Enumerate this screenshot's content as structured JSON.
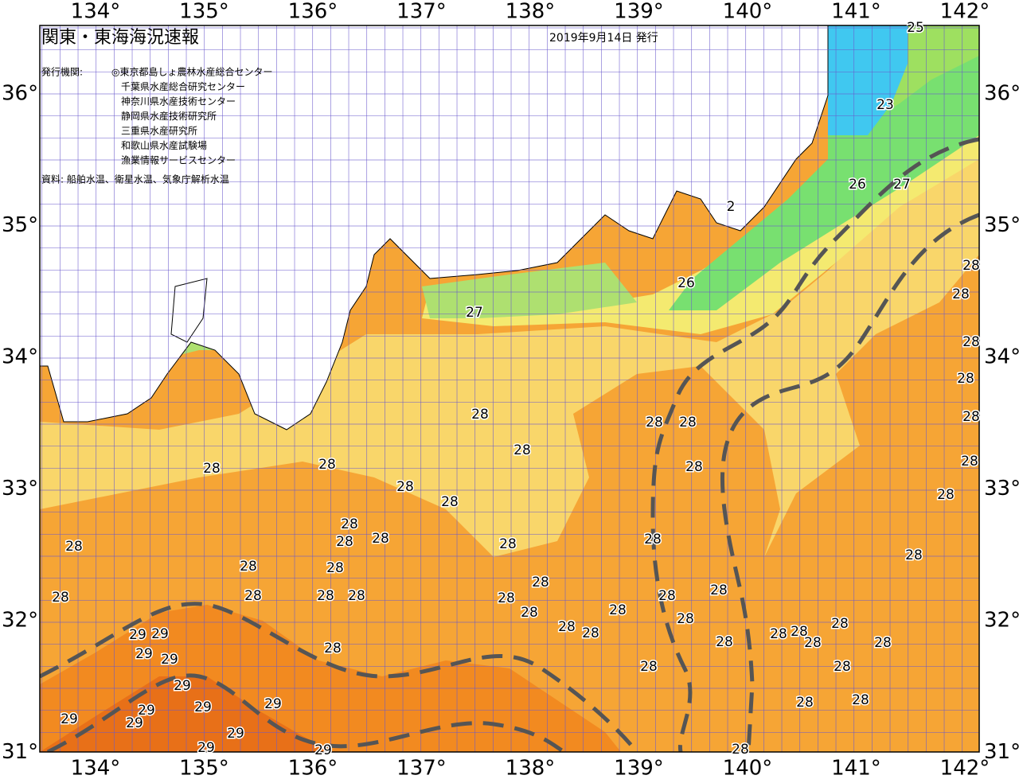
{
  "header": {
    "title": "関東・東海海況速報",
    "date": "2019年9月14日 発行"
  },
  "issuers": {
    "label": "発行機関:",
    "list": [
      "◎東京都島しょ農林水産総合センター",
      "千葉県水産総合研究センター",
      "神奈川県水産技術センター",
      "静岡県水産技術研究所",
      "三重県水産研究所",
      "和歌山県水産試験場",
      "漁業情報サービスセンター"
    ]
  },
  "source": "資料: 船舶水温、衛星水温、気象庁解析水温",
  "axes": {
    "lon": [
      "134°",
      "135°",
      "136°",
      "137°",
      "138°",
      "139°",
      "140°",
      "141°",
      "142°"
    ],
    "lat": [
      "36°",
      "35°",
      "34°",
      "33°",
      "32°",
      "31°"
    ]
  },
  "contour_labels": [
    "25",
    "23",
    "26",
    "27",
    "2",
    "26",
    "27",
    "28",
    "28",
    "28",
    "28",
    "28",
    "28",
    "28",
    "28",
    "28",
    "28",
    "28",
    "28",
    "28",
    "28",
    "28",
    "28",
    "28",
    "28",
    "28",
    "28",
    "28",
    "28",
    "28",
    "28",
    "28",
    "28",
    "28",
    "28",
    "28",
    "28",
    "28",
    "28",
    "28",
    "28",
    "28",
    "28",
    "28",
    "28",
    "28",
    "28",
    "28",
    "28",
    "28",
    "28",
    "28",
    "28",
    "28",
    "28",
    "28",
    "28",
    "29",
    "29",
    "29",
    "29",
    "29",
    "29",
    "29",
    "29",
    "29",
    "29",
    "29",
    "29",
    "29"
  ]
}
